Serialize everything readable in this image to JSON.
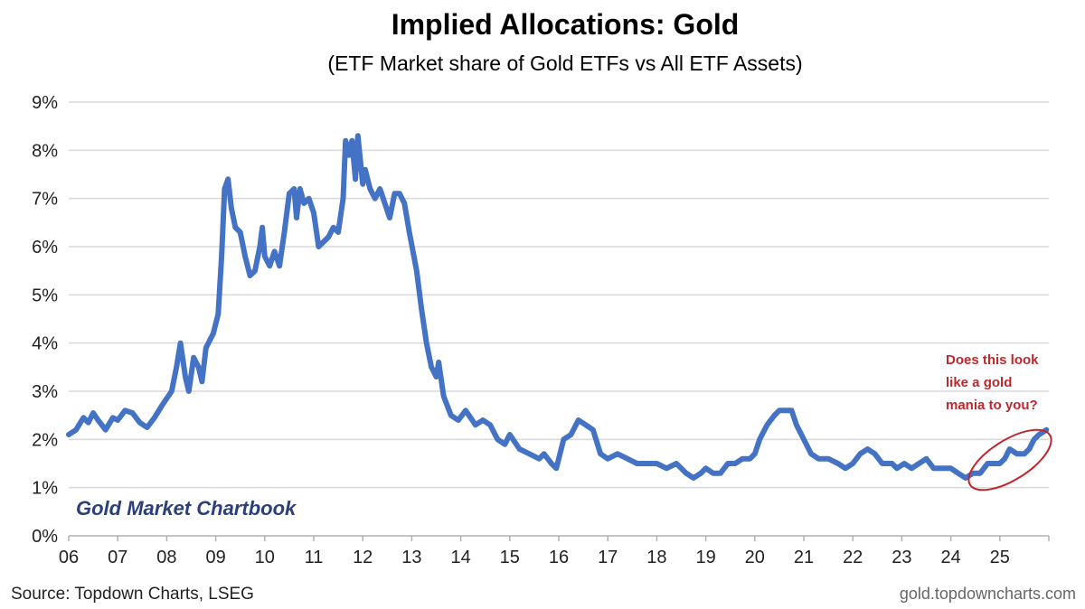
{
  "chart_data": {
    "type": "line",
    "title": "Implied Allocations: Gold",
    "subtitle": "(ETF Market share of Gold ETFs vs All ETF Assets)",
    "xlabel": "",
    "ylabel": "",
    "ylim": [
      0,
      9
    ],
    "y_ticks": [
      "0%",
      "1%",
      "2%",
      "3%",
      "4%",
      "5%",
      "6%",
      "7%",
      "8%",
      "9%"
    ],
    "x_ticks": [
      "06",
      "07",
      "08",
      "09",
      "10",
      "11",
      "12",
      "13",
      "14",
      "15",
      "16",
      "17",
      "18",
      "19",
      "20",
      "21",
      "22",
      "23",
      "24",
      "25"
    ],
    "grid": true,
    "series": [
      {
        "color": "#4472c4",
        "points": [
          [
            2006.0,
            2.1
          ],
          [
            2006.15,
            2.2
          ],
          [
            2006.3,
            2.45
          ],
          [
            2006.4,
            2.35
          ],
          [
            2006.5,
            2.55
          ],
          [
            2006.6,
            2.4
          ],
          [
            2006.75,
            2.2
          ],
          [
            2006.9,
            2.45
          ],
          [
            2007.0,
            2.4
          ],
          [
            2007.15,
            2.6
          ],
          [
            2007.3,
            2.55
          ],
          [
            2007.45,
            2.35
          ],
          [
            2007.6,
            2.25
          ],
          [
            2007.75,
            2.45
          ],
          [
            2007.9,
            2.7
          ],
          [
            2008.1,
            3.0
          ],
          [
            2008.2,
            3.5
          ],
          [
            2008.28,
            4.0
          ],
          [
            2008.38,
            3.3
          ],
          [
            2008.45,
            3.0
          ],
          [
            2008.55,
            3.7
          ],
          [
            2008.65,
            3.5
          ],
          [
            2008.72,
            3.2
          ],
          [
            2008.8,
            3.9
          ],
          [
            2008.95,
            4.2
          ],
          [
            2009.05,
            4.6
          ],
          [
            2009.12,
            5.8
          ],
          [
            2009.18,
            7.2
          ],
          [
            2009.25,
            7.4
          ],
          [
            2009.32,
            6.8
          ],
          [
            2009.4,
            6.4
          ],
          [
            2009.5,
            6.3
          ],
          [
            2009.6,
            5.8
          ],
          [
            2009.7,
            5.4
          ],
          [
            2009.8,
            5.5
          ],
          [
            2009.9,
            6.0
          ],
          [
            2009.95,
            6.4
          ],
          [
            2010.0,
            5.8
          ],
          [
            2010.1,
            5.6
          ],
          [
            2010.2,
            5.9
          ],
          [
            2010.3,
            5.6
          ],
          [
            2010.4,
            6.3
          ],
          [
            2010.5,
            7.1
          ],
          [
            2010.6,
            7.2
          ],
          [
            2010.65,
            6.6
          ],
          [
            2010.72,
            7.2
          ],
          [
            2010.8,
            6.9
          ],
          [
            2010.9,
            7.0
          ],
          [
            2011.0,
            6.7
          ],
          [
            2011.1,
            6.0
          ],
          [
            2011.2,
            6.1
          ],
          [
            2011.3,
            6.2
          ],
          [
            2011.4,
            6.4
          ],
          [
            2011.5,
            6.3
          ],
          [
            2011.6,
            7.0
          ],
          [
            2011.65,
            8.2
          ],
          [
            2011.72,
            7.9
          ],
          [
            2011.78,
            8.2
          ],
          [
            2011.85,
            7.4
          ],
          [
            2011.9,
            8.3
          ],
          [
            2012.0,
            7.3
          ],
          [
            2012.05,
            7.6
          ],
          [
            2012.15,
            7.2
          ],
          [
            2012.25,
            7.0
          ],
          [
            2012.35,
            7.2
          ],
          [
            2012.45,
            6.9
          ],
          [
            2012.55,
            6.6
          ],
          [
            2012.65,
            7.1
          ],
          [
            2012.75,
            7.1
          ],
          [
            2012.85,
            6.9
          ],
          [
            2012.95,
            6.3
          ],
          [
            2013.1,
            5.5
          ],
          [
            2013.2,
            4.7
          ],
          [
            2013.3,
            4.0
          ],
          [
            2013.4,
            3.5
          ],
          [
            2013.5,
            3.3
          ],
          [
            2013.55,
            3.6
          ],
          [
            2013.65,
            2.9
          ],
          [
            2013.8,
            2.5
          ],
          [
            2013.95,
            2.4
          ],
          [
            2014.1,
            2.6
          ],
          [
            2014.3,
            2.3
          ],
          [
            2014.45,
            2.4
          ],
          [
            2014.6,
            2.3
          ],
          [
            2014.75,
            2.0
          ],
          [
            2014.9,
            1.9
          ],
          [
            2015.0,
            2.1
          ],
          [
            2015.2,
            1.8
          ],
          [
            2015.4,
            1.7
          ],
          [
            2015.6,
            1.6
          ],
          [
            2015.7,
            1.7
          ],
          [
            2015.85,
            1.5
          ],
          [
            2015.95,
            1.4
          ],
          [
            2016.1,
            2.0
          ],
          [
            2016.25,
            2.1
          ],
          [
            2016.4,
            2.4
          ],
          [
            2016.55,
            2.3
          ],
          [
            2016.7,
            2.2
          ],
          [
            2016.85,
            1.7
          ],
          [
            2017.0,
            1.6
          ],
          [
            2017.2,
            1.7
          ],
          [
            2017.4,
            1.6
          ],
          [
            2017.6,
            1.5
          ],
          [
            2017.8,
            1.5
          ],
          [
            2018.0,
            1.5
          ],
          [
            2018.2,
            1.4
          ],
          [
            2018.4,
            1.5
          ],
          [
            2018.6,
            1.3
          ],
          [
            2018.75,
            1.2
          ],
          [
            2018.9,
            1.3
          ],
          [
            2019.0,
            1.4
          ],
          [
            2019.15,
            1.3
          ],
          [
            2019.3,
            1.3
          ],
          [
            2019.45,
            1.5
          ],
          [
            2019.6,
            1.5
          ],
          [
            2019.75,
            1.6
          ],
          [
            2019.9,
            1.6
          ],
          [
            2020.0,
            1.7
          ],
          [
            2020.1,
            2.0
          ],
          [
            2020.25,
            2.3
          ],
          [
            2020.4,
            2.5
          ],
          [
            2020.5,
            2.6
          ],
          [
            2020.6,
            2.6
          ],
          [
            2020.75,
            2.6
          ],
          [
            2020.85,
            2.3
          ],
          [
            2021.0,
            2.0
          ],
          [
            2021.15,
            1.7
          ],
          [
            2021.3,
            1.6
          ],
          [
            2021.5,
            1.6
          ],
          [
            2021.7,
            1.5
          ],
          [
            2021.85,
            1.4
          ],
          [
            2022.0,
            1.5
          ],
          [
            2022.15,
            1.7
          ],
          [
            2022.3,
            1.8
          ],
          [
            2022.45,
            1.7
          ],
          [
            2022.6,
            1.5
          ],
          [
            2022.8,
            1.5
          ],
          [
            2022.9,
            1.4
          ],
          [
            2023.05,
            1.5
          ],
          [
            2023.2,
            1.4
          ],
          [
            2023.35,
            1.5
          ],
          [
            2023.5,
            1.6
          ],
          [
            2023.65,
            1.4
          ],
          [
            2023.8,
            1.4
          ],
          [
            2024.0,
            1.4
          ],
          [
            2024.15,
            1.3
          ],
          [
            2024.3,
            1.2
          ],
          [
            2024.45,
            1.3
          ],
          [
            2024.6,
            1.3
          ],
          [
            2024.75,
            1.5
          ],
          [
            2024.85,
            1.5
          ],
          [
            2025.0,
            1.5
          ],
          [
            2025.1,
            1.6
          ],
          [
            2025.2,
            1.8
          ],
          [
            2025.35,
            1.7
          ],
          [
            2025.5,
            1.7
          ],
          [
            2025.6,
            1.8
          ],
          [
            2025.7,
            2.0
          ],
          [
            2025.8,
            2.1
          ],
          [
            2025.95,
            2.2
          ]
        ]
      }
    ],
    "annotations": [
      {
        "label": "Gold Market Chartbook"
      },
      {
        "label": "Does this look like a gold mania to you?",
        "lines": [
          "Does this look",
          "like a gold",
          "mania to you?"
        ]
      }
    ]
  },
  "footer": {
    "source": "Source: Topdown Charts, LSEG",
    "site": "gold.topdowncharts.com"
  }
}
